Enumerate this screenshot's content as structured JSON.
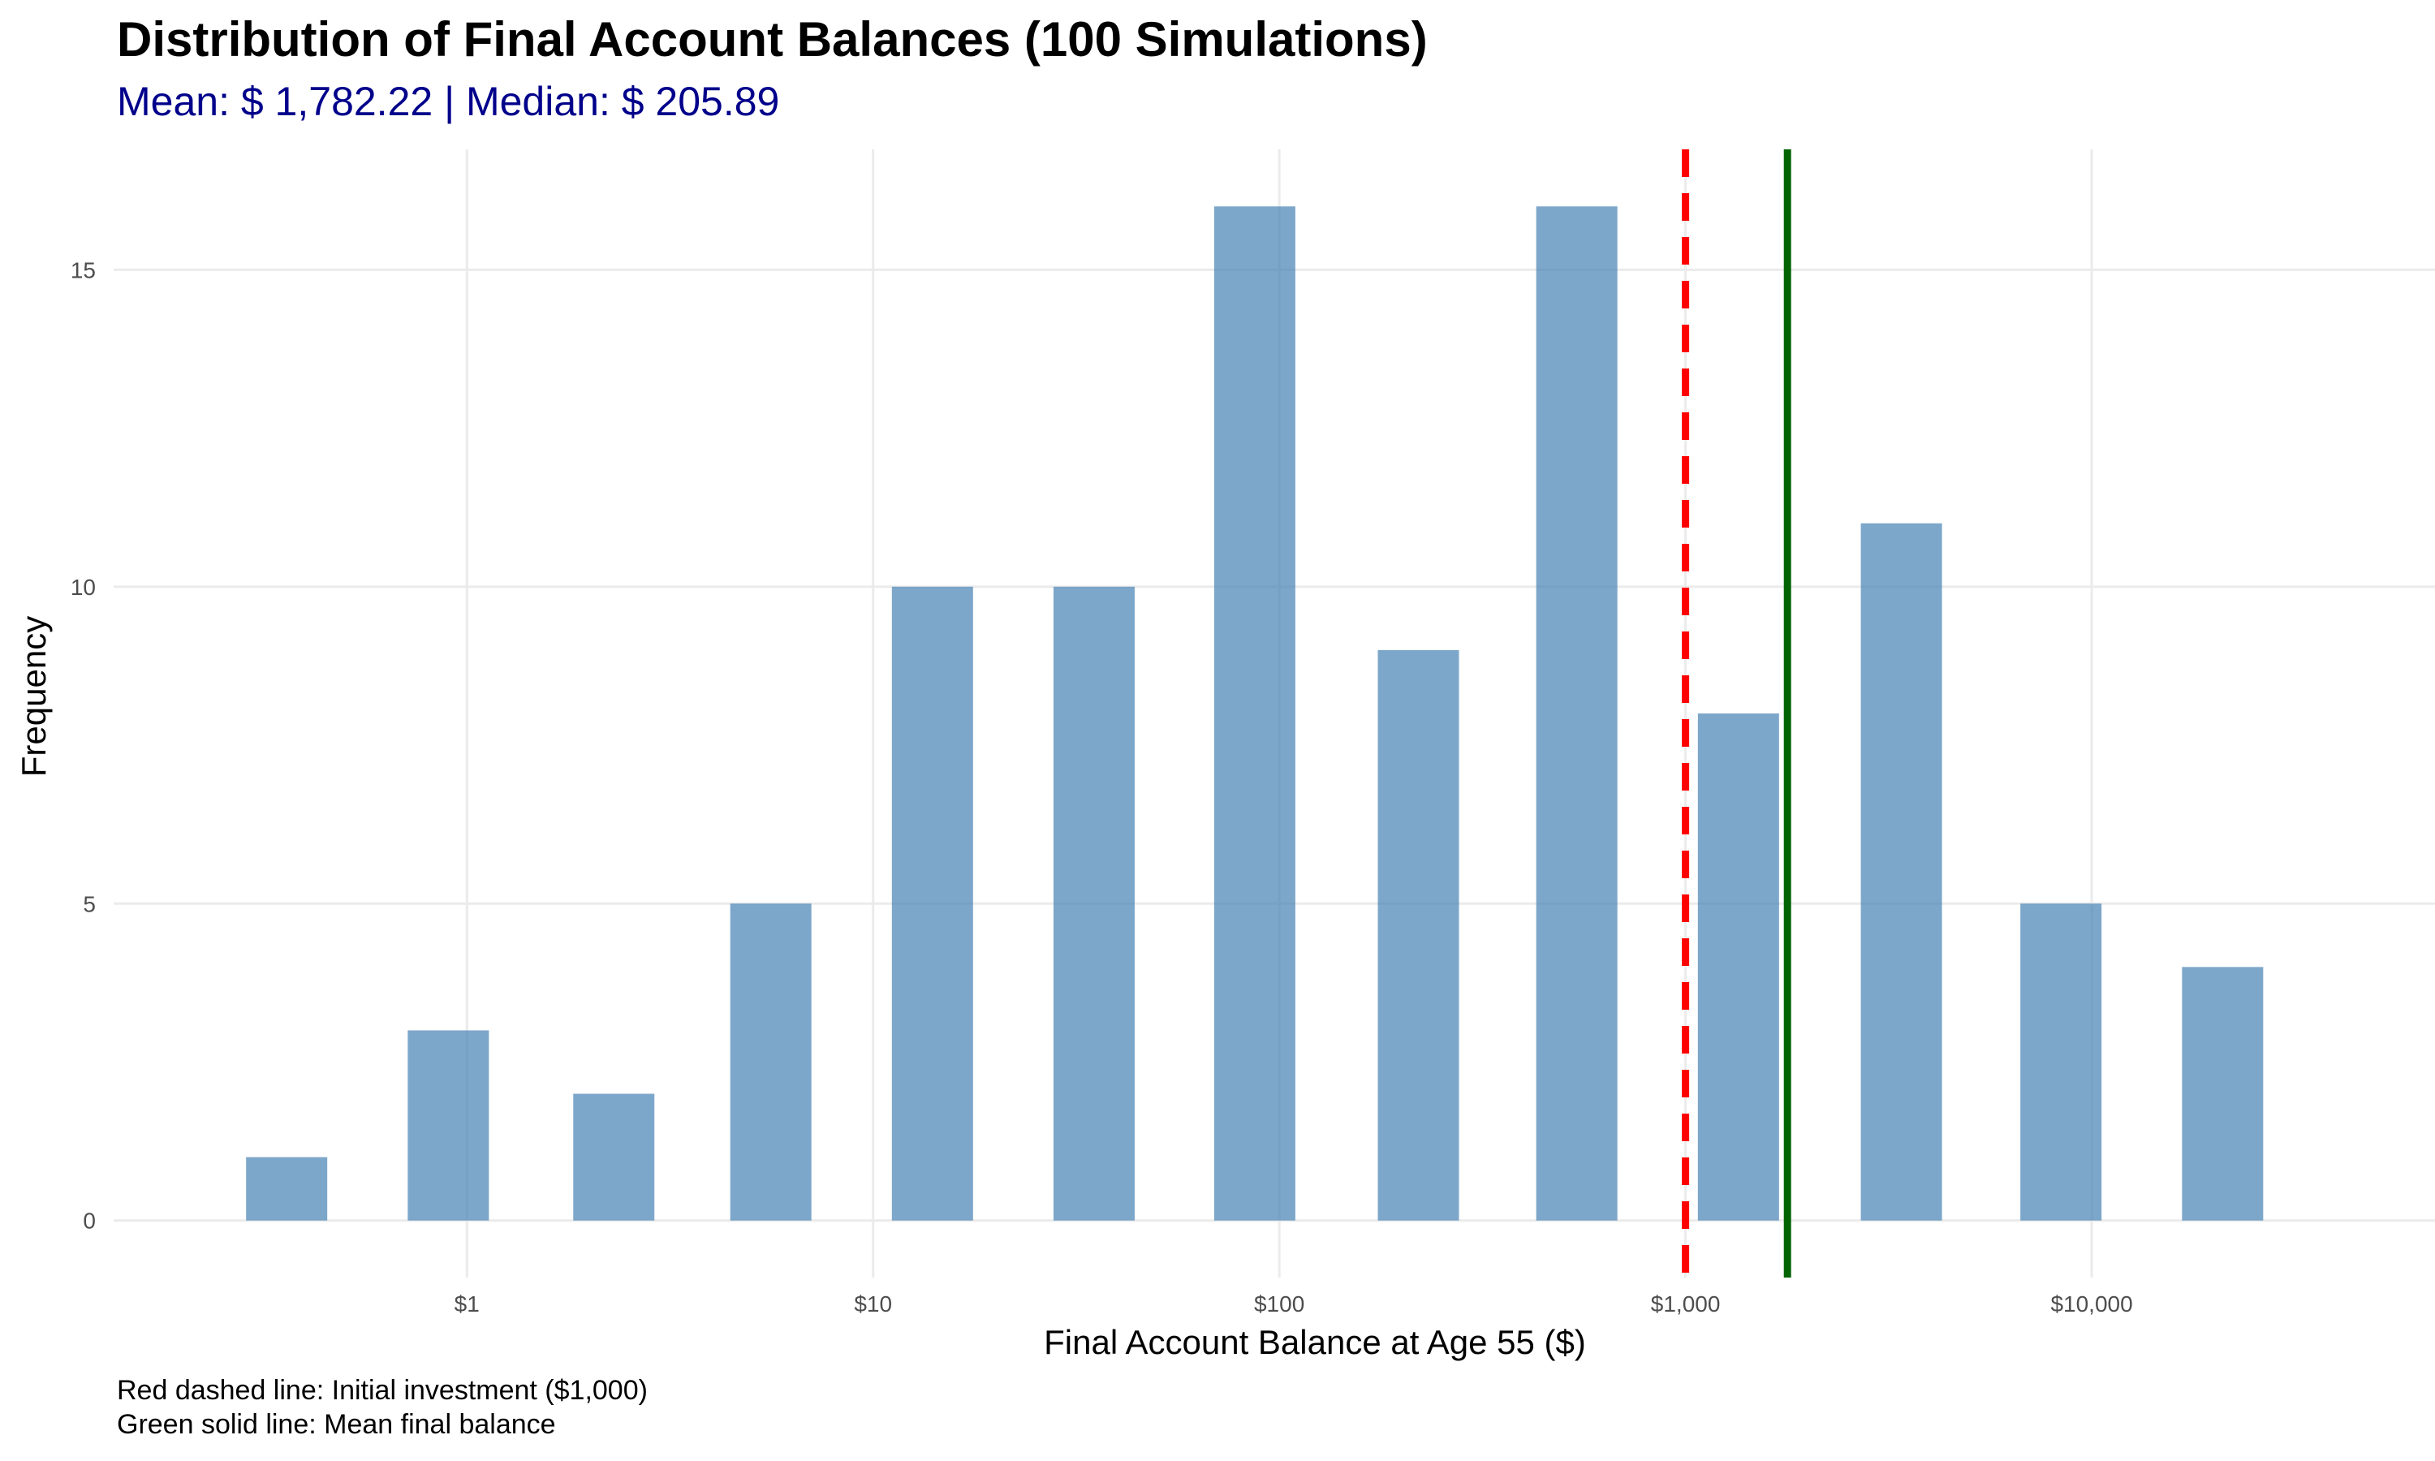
{
  "chart_data": {
    "type": "bar",
    "title": "Distribution of Final Account Balances (100 Simulations)",
    "subtitle": "Mean: $ 1,782.22 | Median: $ 205.89",
    "xlabel": "Final Account Balance at Age 55 ($)",
    "ylabel": "Frequency",
    "x_scale": "log10",
    "x_tick_values": [
      1,
      10,
      100,
      1000,
      10000
    ],
    "x_tick_labels": [
      "$1",
      "$10",
      "$100",
      "$1,000",
      "$10,000"
    ],
    "y_ticks": [
      0,
      5,
      10,
      15
    ],
    "xlim": [
      0.135,
      70000
    ],
    "ylim": [
      -0.9,
      16.9
    ],
    "bars": [
      {
        "x": 0.36,
        "value": 1
      },
      {
        "x": 0.9,
        "value": 3
      },
      {
        "x": 2.3,
        "value": 2
      },
      {
        "x": 5.6,
        "value": 5
      },
      {
        "x": 14,
        "value": 10
      },
      {
        "x": 35,
        "value": 10
      },
      {
        "x": 87,
        "value": 16
      },
      {
        "x": 220,
        "value": 9
      },
      {
        "x": 540,
        "value": 16
      },
      {
        "x": 1350,
        "value": 8
      },
      {
        "x": 3400,
        "value": 11
      },
      {
        "x": 8400,
        "value": 5
      },
      {
        "x": 21000,
        "value": 4
      }
    ],
    "bar_color": "#4682B4",
    "reference_lines": [
      {
        "x": 1000,
        "color": "#FF0000",
        "style": "dashed",
        "meaning": "Initial investment"
      },
      {
        "x": 1782.22,
        "color": "#006400",
        "style": "solid",
        "meaning": "Mean final balance"
      }
    ],
    "grid": true
  },
  "captions": [
    "Red dashed line: Initial investment ($1,000)",
    "Green solid line: Mean final balance"
  ]
}
